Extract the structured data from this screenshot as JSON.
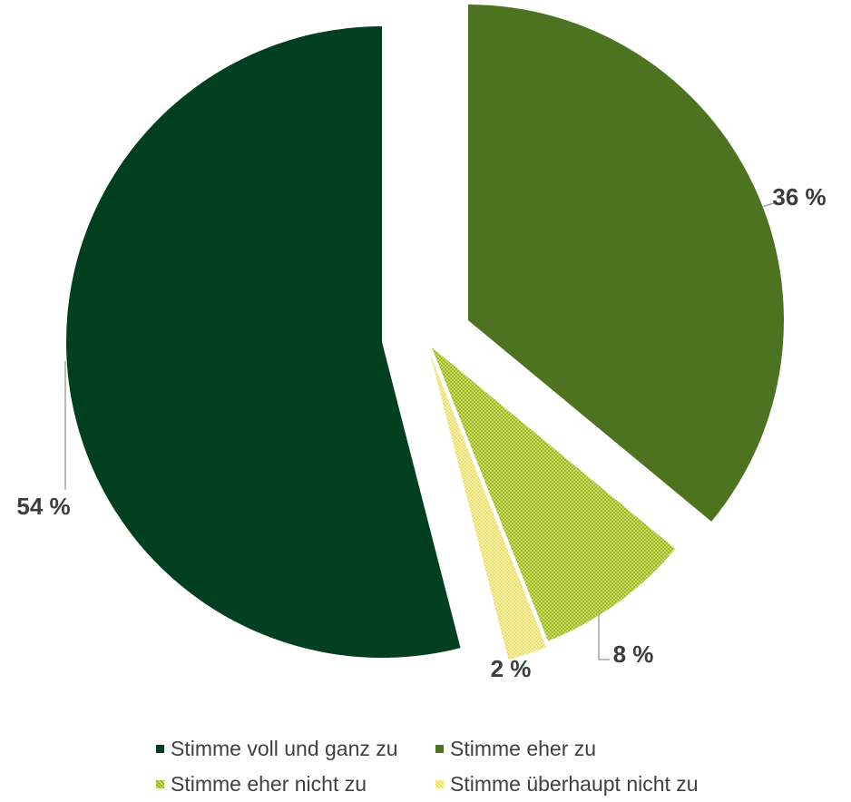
{
  "chart_data": {
    "type": "pie",
    "slices": [
      {
        "label": "Stimme voll und ganz zu",
        "value": 54,
        "display": "54 %",
        "color": "#003f1f",
        "pattern": "solid"
      },
      {
        "label": "Stimme eher zu",
        "value": 36,
        "display": "36 %",
        "color": "#4d7320",
        "pattern": "solid"
      },
      {
        "label": "Stimme eher nicht zu",
        "value": 8,
        "display": "8 %",
        "color": "#b3cc3a",
        "pattern": "dots"
      },
      {
        "label": "Stimme überhaupt nicht zu",
        "value": 2,
        "display": "2 %",
        "color": "#f2ea8a",
        "pattern": "dots"
      }
    ],
    "legend_position": "bottom",
    "exploded": true
  }
}
